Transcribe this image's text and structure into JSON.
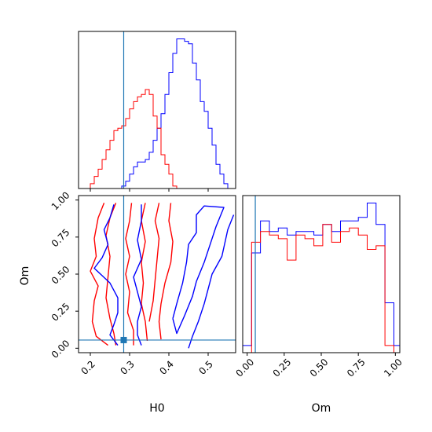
{
  "chart_data": {
    "type": "corner",
    "parameters": [
      "H0",
      "Om"
    ],
    "truth": {
      "H0": 0.285,
      "Om": 0.055
    },
    "colors": {
      "series_a": "#0000ff",
      "series_b": "#ff0000",
      "truth": "#1f77b4"
    },
    "xlim": {
      "H0": [
        0.17,
        0.57
      ],
      "Om": [
        -0.03,
        1.03
      ]
    },
    "ylim": {
      "Om": [
        -0.03,
        1.03
      ]
    },
    "ticks": {
      "H0": [
        "0.2",
        "0.3",
        "0.4",
        "0.5"
      ],
      "Om": [
        "0.00",
        "0.25",
        "0.50",
        "0.75",
        "1.00"
      ]
    },
    "h0_hist": {
      "bin_edges": [
        0.17,
        0.18,
        0.19,
        0.2,
        0.21,
        0.22,
        0.23,
        0.24,
        0.25,
        0.26,
        0.27,
        0.28,
        0.29,
        0.3,
        0.31,
        0.32,
        0.33,
        0.34,
        0.35,
        0.36,
        0.37,
        0.38,
        0.39,
        0.4,
        0.41,
        0.42,
        0.43,
        0.44,
        0.45,
        0.46,
        0.47,
        0.48,
        0.49,
        0.5,
        0.51,
        0.52,
        0.53,
        0.54,
        0.55,
        0.56,
        0.57
      ],
      "blue": [
        0,
        0,
        0,
        0,
        0,
        0,
        0,
        0,
        0,
        0,
        0,
        1,
        3,
        6,
        9,
        11,
        11,
        12,
        15,
        20,
        25,
        31,
        39,
        48,
        56,
        62,
        62,
        61,
        60,
        52,
        45,
        36,
        32,
        25,
        18,
        10,
        6,
        2,
        0,
        0
      ],
      "red": [
        0,
        0,
        0,
        2,
        5,
        8,
        12,
        16,
        20,
        24,
        25,
        26,
        29,
        33,
        36,
        38,
        39,
        41,
        39,
        30,
        25,
        14,
        10,
        6,
        1,
        0,
        0,
        0,
        0,
        0,
        0,
        0,
        0,
        0,
        0,
        0,
        0,
        0,
        0,
        0
      ]
    },
    "om_hist": {
      "bin_edges": [
        -0.03,
        0.03,
        0.09,
        0.15,
        0.21,
        0.27,
        0.33,
        0.39,
        0.45,
        0.51,
        0.57,
        0.63,
        0.69,
        0.75,
        0.81,
        0.87,
        0.93,
        0.99,
        1.03
      ],
      "blue": [
        2,
        28,
        37,
        34,
        35,
        33,
        34,
        34,
        33,
        36,
        34,
        37,
        37,
        38,
        42,
        36,
        14,
        2
      ],
      "red": [
        0,
        31,
        34,
        33,
        32,
        26,
        33,
        32,
        30,
        36,
        31,
        34,
        35,
        33,
        29,
        30,
        2,
        0
      ]
    },
    "contours": {
      "blue": [
        [
          [
            0.26,
            0.97
          ],
          [
            0.25,
            0.88
          ],
          [
            0.235,
            0.8
          ],
          [
            0.245,
            0.7
          ],
          [
            0.23,
            0.61
          ],
          [
            0.21,
            0.54
          ],
          [
            0.25,
            0.44
          ],
          [
            0.27,
            0.34
          ],
          [
            0.27,
            0.24
          ],
          [
            0.26,
            0.16
          ],
          [
            0.25,
            0.09
          ],
          [
            0.27,
            0.02
          ]
        ],
        [
          [
            0.33,
            0.97
          ],
          [
            0.33,
            0.86
          ],
          [
            0.32,
            0.73
          ],
          [
            0.33,
            0.6
          ],
          [
            0.31,
            0.48
          ],
          [
            0.32,
            0.38
          ],
          [
            0.33,
            0.28
          ],
          [
            0.32,
            0.18
          ],
          [
            0.32,
            0.09
          ],
          [
            0.33,
            0.02
          ]
        ],
        [
          [
            0.41,
            0.2
          ],
          [
            0.42,
            0.3
          ],
          [
            0.435,
            0.44
          ],
          [
            0.445,
            0.58
          ],
          [
            0.45,
            0.7
          ],
          [
            0.47,
            0.78
          ],
          [
            0.47,
            0.9
          ],
          [
            0.49,
            0.96
          ],
          [
            0.54,
            0.95
          ],
          [
            0.52,
            0.82
          ],
          [
            0.505,
            0.7
          ],
          [
            0.49,
            0.58
          ],
          [
            0.47,
            0.45
          ],
          [
            0.46,
            0.35
          ],
          [
            0.44,
            0.22
          ],
          [
            0.42,
            0.1
          ],
          [
            0.41,
            0.2
          ]
        ],
        [
          [
            0.565,
            0.9
          ],
          [
            0.55,
            0.8
          ],
          [
            0.535,
            0.62
          ],
          [
            0.51,
            0.5
          ],
          [
            0.5,
            0.4
          ],
          [
            0.49,
            0.3
          ],
          [
            0.475,
            0.18
          ],
          [
            0.46,
            0.08
          ],
          [
            0.45,
            0.0
          ]
        ]
      ],
      "red": [
        [
          [
            0.235,
            0.98
          ],
          [
            0.22,
            0.88
          ],
          [
            0.21,
            0.74
          ],
          [
            0.215,
            0.62
          ],
          [
            0.2,
            0.52
          ],
          [
            0.22,
            0.42
          ],
          [
            0.21,
            0.32
          ],
          [
            0.205,
            0.18
          ],
          [
            0.215,
            0.08
          ],
          [
            0.245,
            0.02
          ]
        ],
        [
          [
            0.265,
            0.98
          ],
          [
            0.25,
            0.88
          ],
          [
            0.24,
            0.76
          ],
          [
            0.25,
            0.62
          ],
          [
            0.245,
            0.48
          ],
          [
            0.24,
            0.34
          ],
          [
            0.25,
            0.2
          ],
          [
            0.26,
            0.1
          ],
          [
            0.265,
            0.02
          ]
        ],
        [
          [
            0.305,
            0.98
          ],
          [
            0.3,
            0.86
          ],
          [
            0.29,
            0.74
          ],
          [
            0.3,
            0.62
          ],
          [
            0.29,
            0.5
          ],
          [
            0.3,
            0.38
          ],
          [
            0.295,
            0.24
          ],
          [
            0.31,
            0.12
          ],
          [
            0.31,
            0.02
          ]
        ],
        [
          [
            0.34,
            0.98
          ],
          [
            0.33,
            0.86
          ],
          [
            0.34,
            0.72
          ],
          [
            0.33,
            0.58
          ],
          [
            0.335,
            0.44
          ],
          [
            0.33,
            0.3
          ],
          [
            0.34,
            0.18
          ],
          [
            0.345,
            0.05
          ]
        ],
        [
          [
            0.375,
            0.98
          ],
          [
            0.365,
            0.86
          ],
          [
            0.375,
            0.74
          ],
          [
            0.37,
            0.6
          ],
          [
            0.365,
            0.46
          ],
          [
            0.36,
            0.32
          ],
          [
            0.35,
            0.18
          ]
        ],
        [
          [
            0.405,
            0.98
          ],
          [
            0.4,
            0.86
          ],
          [
            0.41,
            0.72
          ],
          [
            0.405,
            0.58
          ],
          [
            0.39,
            0.44
          ],
          [
            0.38,
            0.3
          ],
          [
            0.375,
            0.18
          ],
          [
            0.38,
            0.06
          ]
        ]
      ]
    }
  }
}
